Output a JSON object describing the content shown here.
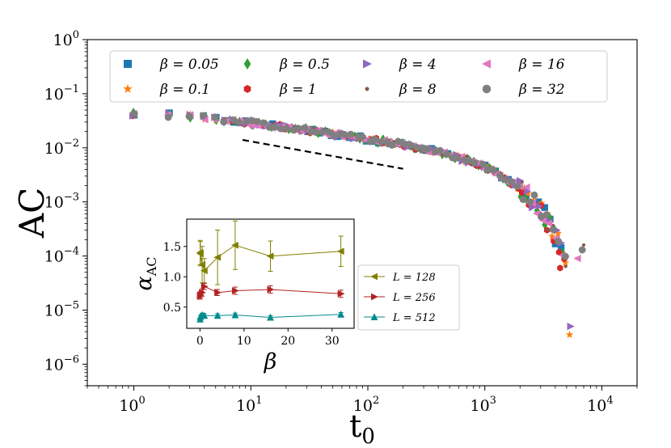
{
  "chart_data": [
    {
      "type": "scatter",
      "title": "",
      "xlabel": "t",
      "xlabel_sub": "0",
      "ylabel": "AC",
      "xscale": "log",
      "yscale": "log",
      "xlim": [
        0.4,
        20000
      ],
      "ylim": [
        4e-07,
        1
      ],
      "x_ticks": [
        {
          "base": "10",
          "exp": "0"
        },
        {
          "base": "10",
          "exp": "1"
        },
        {
          "base": "10",
          "exp": "2"
        },
        {
          "base": "10",
          "exp": "3"
        },
        {
          "base": "10",
          "exp": "4"
        }
      ],
      "y_ticks": [
        {
          "base": "10",
          "exp": "0"
        },
        {
          "base": "10",
          "exp": "−1"
        },
        {
          "base": "10",
          "exp": "−2"
        },
        {
          "base": "10",
          "exp": "−3"
        },
        {
          "base": "10",
          "exp": "−4"
        },
        {
          "base": "10",
          "exp": "−5"
        },
        {
          "base": "10",
          "exp": "−6"
        }
      ],
      "legend_position": "top",
      "series": [
        {
          "name": "β = 0.05",
          "marker": "square",
          "color": "#1f77b4"
        },
        {
          "name": "β = 0.1",
          "marker": "star",
          "color": "#ff7f0e"
        },
        {
          "name": "β = 0.5",
          "marker": "diamond",
          "color": "#2ca02c"
        },
        {
          "name": "β = 1",
          "marker": "hexagon",
          "color": "#d62728"
        },
        {
          "name": "β = 4",
          "marker": "triangle-right",
          "color": "#9467bd"
        },
        {
          "name": "β = 8",
          "marker": "point",
          "color": "#8c564b"
        },
        {
          "name": "β = 16",
          "marker": "triangle-left",
          "color": "#e377c2"
        },
        {
          "name": "β = 32",
          "marker": "circle",
          "color": "#7f7f7f"
        }
      ],
      "master_curve": {
        "t0": [
          1,
          2,
          3,
          4,
          6,
          10,
          20,
          50,
          100,
          200,
          500,
          1000,
          2000,
          3000,
          4000,
          5000
        ],
        "AC": [
          0.042,
          0.04,
          0.038,
          0.036,
          0.033,
          0.029,
          0.024,
          0.018,
          0.0145,
          0.0115,
          0.0075,
          0.0045,
          0.0018,
          0.0007,
          0.00025,
          8e-05
        ]
      },
      "tail_points": [
        {
          "series": "β = 0.1",
          "t0": 5300,
          "AC": 3.5e-06
        },
        {
          "series": "β = 4",
          "t0": 5400,
          "AC": 5e-06
        },
        {
          "series": "β = 32",
          "t0": 6800,
          "AC": 0.00013
        },
        {
          "series": "β = 8",
          "t0": 7000,
          "AC": 0.00016
        },
        {
          "series": "β = 1",
          "t0": 4400,
          "AC": 6e-05
        },
        {
          "series": "β = 16",
          "t0": 6200,
          "AC": 9e-05
        }
      ],
      "reference_line": {
        "style": "dashed",
        "color": "#000000",
        "t0": [
          8.5,
          200
        ],
        "AC": [
          0.014,
          0.0041
        ]
      }
    },
    {
      "type": "line",
      "title": "",
      "xlabel": "β",
      "ylabel": "α",
      "ylabel_sub": "AC",
      "xlim": [
        -3,
        35
      ],
      "ylim": [
        0.15,
        1.95
      ],
      "x_ticks": [
        "0",
        "10",
        "20",
        "30"
      ],
      "x_tick_values": [
        0,
        10,
        20,
        30
      ],
      "y_ticks": [
        "0.5",
        "1.0",
        "1.5"
      ],
      "y_tick_values": [
        0.5,
        1.0,
        1.5
      ],
      "legend_position": "right",
      "series": [
        {
          "name": "L = 128",
          "marker": "triangle-left",
          "color": "#808000",
          "x": [
            0.05,
            0.1,
            0.5,
            1,
            4,
            8,
            16,
            32
          ],
          "y": [
            1.4,
            1.38,
            1.2,
            1.1,
            1.32,
            1.52,
            1.34,
            1.42
          ],
          "err": [
            0.2,
            0.2,
            0.3,
            0.2,
            0.45,
            0.4,
            0.25,
            0.25
          ]
        },
        {
          "name": "L = 256",
          "marker": "triangle-right",
          "color": "#b22222",
          "x": [
            0.05,
            0.1,
            0.5,
            1,
            4,
            8,
            16,
            32
          ],
          "y": [
            0.68,
            0.7,
            0.74,
            0.84,
            0.74,
            0.77,
            0.79,
            0.72
          ],
          "err": [
            0.05,
            0.05,
            0.06,
            0.05,
            0.05,
            0.06,
            0.06,
            0.06
          ]
        },
        {
          "name": "L = 512",
          "marker": "triangle-up",
          "color": "#008b8b",
          "x": [
            0.05,
            0.1,
            0.5,
            1,
            4,
            8,
            16,
            32
          ],
          "y": [
            0.3,
            0.34,
            0.37,
            0.36,
            0.36,
            0.37,
            0.33,
            0.38
          ],
          "err": [
            0.03,
            0.03,
            0.03,
            0.03,
            0.03,
            0.03,
            0.03,
            0.03
          ]
        }
      ]
    }
  ]
}
